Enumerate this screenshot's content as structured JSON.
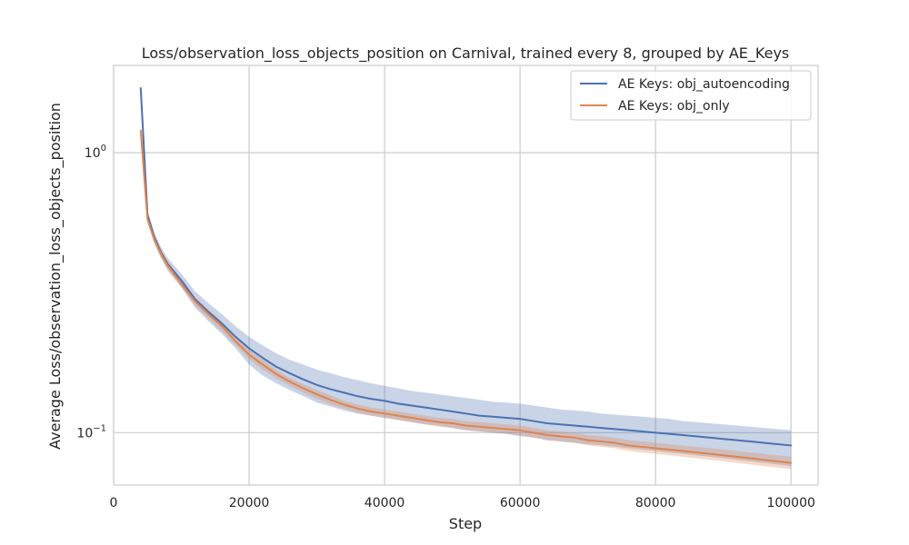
{
  "chart_data": {
    "type": "line",
    "title": "Loss/observation_loss_objects_position on Carnival, trained every 8, grouped by AE_Keys",
    "xlabel": "Step",
    "ylabel": "Average Loss/observation_loss_objects_position",
    "xlim": [
      0,
      104000
    ],
    "ylim": [
      0.065,
      2.05
    ],
    "yscale": "log",
    "x_ticks": [
      0,
      20000,
      40000,
      60000,
      80000,
      100000
    ],
    "x_tick_labels": [
      "0",
      "20000",
      "40000",
      "60000",
      "80000",
      "100000"
    ],
    "y_ticks": [
      0.1,
      1.0
    ],
    "y_tick_labels": [
      [
        "10",
        "−1"
      ],
      [
        "10",
        "0"
      ]
    ],
    "grid": true,
    "legend_position": "top-right",
    "x": [
      4000,
      5000,
      6000,
      7000,
      8000,
      10000,
      12000,
      14000,
      16000,
      18000,
      20000,
      22000,
      24000,
      26000,
      28000,
      30000,
      32000,
      34000,
      36000,
      38000,
      40000,
      42000,
      44000,
      46000,
      48000,
      50000,
      52000,
      54000,
      56000,
      58000,
      60000,
      62000,
      64000,
      66000,
      68000,
      70000,
      72000,
      74000,
      76000,
      78000,
      80000,
      82000,
      84000,
      86000,
      88000,
      90000,
      92000,
      94000,
      96000,
      98000,
      100000
    ],
    "series": [
      {
        "name": "AE Keys: obj_autoencoding",
        "color": "#4c72b0",
        "values": [
          1.7,
          0.6,
          0.5,
          0.44,
          0.4,
          0.35,
          0.3,
          0.27,
          0.245,
          0.22,
          0.2,
          0.185,
          0.172,
          0.163,
          0.155,
          0.148,
          0.143,
          0.139,
          0.135,
          0.132,
          0.13,
          0.127,
          0.125,
          0.123,
          0.121,
          0.119,
          0.117,
          0.115,
          0.114,
          0.113,
          0.112,
          0.11,
          0.108,
          0.107,
          0.106,
          0.105,
          0.104,
          0.103,
          0.102,
          0.101,
          0.1,
          0.099,
          0.098,
          0.097,
          0.096,
          0.095,
          0.094,
          0.093,
          0.092,
          0.091,
          0.09
        ],
        "lower": [
          1.65,
          0.58,
          0.48,
          0.42,
          0.38,
          0.33,
          0.28,
          0.25,
          0.225,
          0.2,
          0.175,
          0.16,
          0.15,
          0.142,
          0.135,
          0.128,
          0.124,
          0.12,
          0.117,
          0.115,
          0.113,
          0.111,
          0.109,
          0.107,
          0.106,
          0.104,
          0.102,
          0.101,
          0.1,
          0.099,
          0.097,
          0.096,
          0.094,
          0.093,
          0.092,
          0.091,
          0.09,
          0.089,
          0.088,
          0.087,
          0.086,
          0.085,
          0.084,
          0.083,
          0.082,
          0.081,
          0.08,
          0.079,
          0.078,
          0.077,
          0.076
        ],
        "upper": [
          1.75,
          0.62,
          0.52,
          0.46,
          0.42,
          0.37,
          0.32,
          0.29,
          0.265,
          0.24,
          0.22,
          0.205,
          0.192,
          0.182,
          0.175,
          0.168,
          0.163,
          0.158,
          0.154,
          0.15,
          0.147,
          0.144,
          0.141,
          0.139,
          0.137,
          0.135,
          0.133,
          0.131,
          0.129,
          0.128,
          0.127,
          0.125,
          0.123,
          0.121,
          0.12,
          0.119,
          0.117,
          0.116,
          0.115,
          0.114,
          0.113,
          0.112,
          0.11,
          0.109,
          0.108,
          0.107,
          0.106,
          0.105,
          0.104,
          0.103,
          0.102
        ]
      },
      {
        "name": "AE Keys: obj_only",
        "color": "#dd8452",
        "values": [
          1.2,
          0.58,
          0.49,
          0.435,
          0.395,
          0.34,
          0.295,
          0.265,
          0.24,
          0.212,
          0.19,
          0.175,
          0.162,
          0.152,
          0.144,
          0.137,
          0.131,
          0.126,
          0.122,
          0.119,
          0.117,
          0.115,
          0.113,
          0.111,
          0.109,
          0.108,
          0.106,
          0.105,
          0.104,
          0.103,
          0.102,
          0.1,
          0.098,
          0.097,
          0.096,
          0.094,
          0.093,
          0.092,
          0.09,
          0.089,
          0.088,
          0.087,
          0.086,
          0.085,
          0.084,
          0.083,
          0.082,
          0.081,
          0.08,
          0.079,
          0.078
        ],
        "lower": [
          1.15,
          0.56,
          0.47,
          0.42,
          0.38,
          0.33,
          0.285,
          0.255,
          0.23,
          0.205,
          0.183,
          0.168,
          0.156,
          0.147,
          0.139,
          0.132,
          0.126,
          0.122,
          0.118,
          0.115,
          0.113,
          0.111,
          0.109,
          0.107,
          0.105,
          0.104,
          0.102,
          0.101,
          0.1,
          0.099,
          0.098,
          0.096,
          0.094,
          0.093,
          0.092,
          0.09,
          0.089,
          0.088,
          0.086,
          0.085,
          0.084,
          0.083,
          0.082,
          0.081,
          0.08,
          0.079,
          0.078,
          0.077,
          0.076,
          0.075,
          0.074
        ],
        "upper": [
          1.25,
          0.6,
          0.51,
          0.45,
          0.41,
          0.35,
          0.305,
          0.275,
          0.25,
          0.22,
          0.197,
          0.182,
          0.168,
          0.157,
          0.149,
          0.142,
          0.136,
          0.13,
          0.126,
          0.123,
          0.121,
          0.119,
          0.117,
          0.115,
          0.113,
          0.112,
          0.11,
          0.109,
          0.108,
          0.107,
          0.106,
          0.104,
          0.102,
          0.101,
          0.1,
          0.098,
          0.097,
          0.096,
          0.094,
          0.093,
          0.092,
          0.091,
          0.09,
          0.089,
          0.088,
          0.087,
          0.086,
          0.085,
          0.084,
          0.083,
          0.082
        ]
      }
    ]
  }
}
